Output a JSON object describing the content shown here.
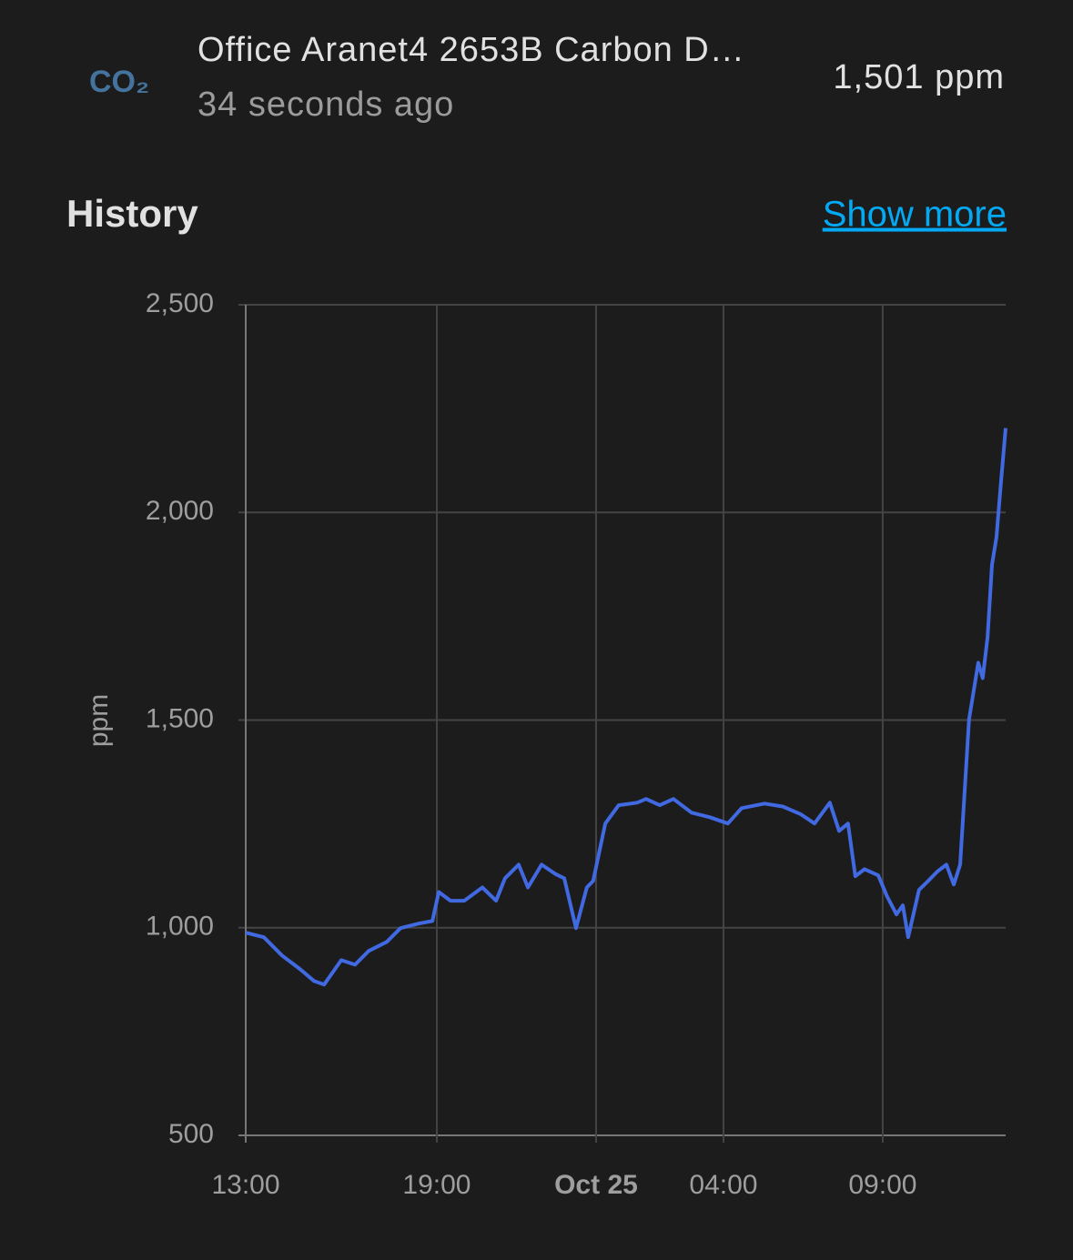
{
  "header": {
    "icon": "CO₂",
    "title": "Office Aranet4 2653B Carbon D…",
    "subtitle": "34 seconds ago",
    "state": "1,501 ppm"
  },
  "history": {
    "title": "History",
    "link": "Show more"
  },
  "chart_data": {
    "type": "line",
    "y_label": "ppm",
    "color": "#4169e1",
    "grid": true,
    "xlim": [
      0,
      23.86
    ],
    "xticks": [
      {
        "value": 0,
        "label": "13:00"
      },
      {
        "value": 6,
        "label": "19:00"
      },
      {
        "value": 11,
        "label": "Oct 25"
      },
      {
        "value": 15,
        "label": "04:00"
      },
      {
        "value": 20,
        "label": "09:00"
      }
    ],
    "ylim": [
      500,
      2500
    ],
    "yticks": [
      {
        "value": 500,
        "label": "500"
      },
      {
        "value": 1000,
        "label": "1,000"
      },
      {
        "value": 1500,
        "label": "1,500"
      },
      {
        "value": 2000,
        "label": "2,000"
      },
      {
        "value": 2500,
        "label": "2,500"
      }
    ],
    "x": [
      0,
      0.57,
      1.14,
      1.71,
      2.14,
      2.46,
      3.0,
      3.43,
      3.86,
      4.43,
      4.86,
      5.43,
      5.86,
      6.06,
      6.43,
      6.86,
      7.43,
      7.86,
      8.14,
      8.57,
      8.86,
      9.29,
      9.71,
      10.0,
      10.37,
      10.71,
      10.91,
      11.29,
      11.71,
      12.29,
      12.57,
      13.0,
      13.43,
      14.0,
      14.57,
      15.14,
      15.57,
      16.29,
      16.86,
      17.43,
      17.86,
      18.34,
      18.63,
      18.91,
      19.14,
      19.43,
      19.86,
      20.14,
      20.43,
      20.63,
      20.8,
      21.14,
      21.43,
      21.71,
      22.0,
      22.23,
      22.43,
      22.71,
      23.0,
      23.14,
      23.29,
      23.43,
      23.57,
      23.71,
      23.86
    ],
    "values": [
      988,
      977,
      933,
      900,
      872,
      863,
      922,
      911,
      944,
      966,
      999,
      1010,
      1016,
      1086,
      1065,
      1065,
      1097,
      1065,
      1119,
      1152,
      1097,
      1152,
      1130,
      1119,
      999,
      1097,
      1113,
      1251,
      1295,
      1301,
      1310,
      1295,
      1310,
      1277,
      1266,
      1251,
      1288,
      1299,
      1292,
      1273,
      1251,
      1301,
      1233,
      1251,
      1124,
      1141,
      1126,
      1075,
      1032,
      1054,
      977,
      1091,
      1113,
      1135,
      1152,
      1104,
      1152,
      1502,
      1638,
      1601,
      1699,
      1874,
      1940,
      2071,
      2203
    ]
  }
}
